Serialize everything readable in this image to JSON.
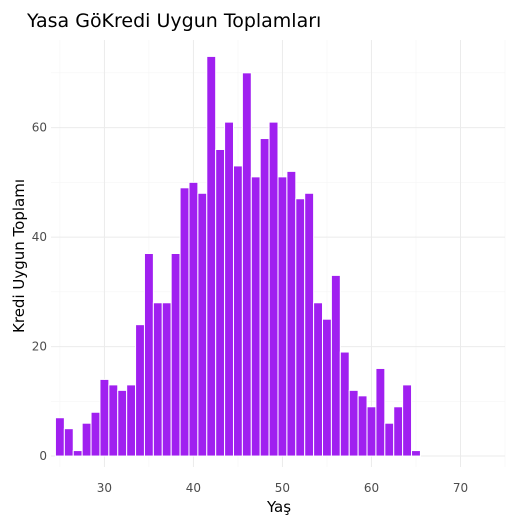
{
  "chart_data": {
    "type": "bar",
    "title": "Yasa GöKredi Uygun Toplamları",
    "xlabel": "Yaş",
    "ylabel": "Kredi Uygun Toplamı",
    "xlim": [
      24,
      75
    ],
    "ylim": [
      -2,
      76
    ],
    "x_ticks": [
      30,
      40,
      50,
      60,
      70
    ],
    "y_ticks": [
      0,
      20,
      40,
      60
    ],
    "bar_color": "#a020f0",
    "grid": true,
    "legend": "none",
    "x": [
      25,
      26,
      27,
      28,
      29,
      30,
      31,
      32,
      33,
      34,
      35,
      36,
      37,
      38,
      39,
      40,
      41,
      42,
      43,
      44,
      45,
      46,
      47,
      48,
      49,
      50,
      51,
      52,
      53,
      54,
      55,
      56,
      57,
      58,
      59,
      60,
      61,
      62,
      63,
      64,
      65,
      66,
      67,
      68,
      69,
      70,
      71,
      72,
      73,
      74
    ],
    "values": [
      7,
      5,
      1,
      6,
      8,
      14,
      13,
      12,
      13,
      24,
      37,
      28,
      28,
      37,
      49,
      50,
      48,
      73,
      56,
      61,
      53,
      70,
      51,
      58,
      61,
      51,
      52,
      47,
      48,
      28,
      25,
      33,
      19,
      12,
      11,
      9,
      16,
      6,
      9,
      13,
      1,
      0,
      0,
      0,
      0,
      0,
      0,
      0,
      0,
      0
    ]
  }
}
